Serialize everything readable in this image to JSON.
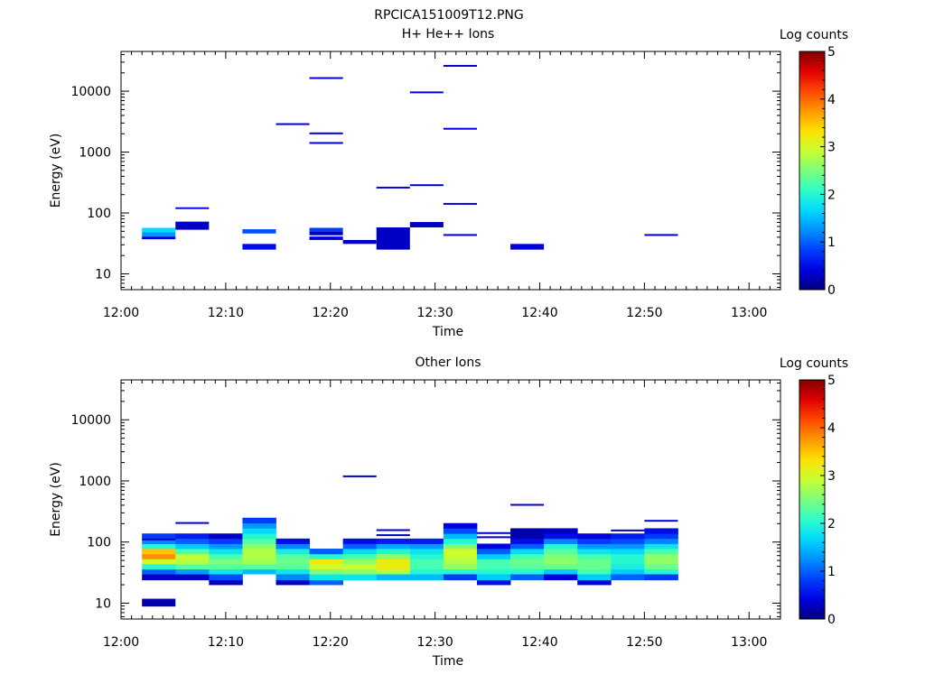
{
  "figure_title": "RPCICA151009T12.PNG",
  "colormap": [
    "#00007f",
    "#0000e0",
    "#0040ff",
    "#0090ff",
    "#00d8ff",
    "#30ffc8",
    "#7cff7a",
    "#c8ff30",
    "#ffe000",
    "#ff9800",
    "#ff4800",
    "#e00000",
    "#800000"
  ],
  "chart_data": [
    {
      "type": "heatmap",
      "title": "H+ He++ Ions",
      "xlabel": "Time",
      "ylabel": "Energy (eV)",
      "x_ticks": [
        "12:00",
        "12:10",
        "12:20",
        "12:30",
        "12:40",
        "12:50",
        "13:00"
      ],
      "x_range_minutes": [
        0,
        63
      ],
      "y_scale": "log",
      "y_range": [
        5.5,
        45000
      ],
      "y_ticks": [
        10,
        100,
        1000,
        10000
      ],
      "y_tick_labels": [
        "10",
        "100",
        "1000",
        "10000"
      ],
      "colorbar": {
        "label": "Log counts",
        "range": [
          0,
          5
        ],
        "ticks": [
          "0",
          "1",
          "2",
          "3",
          "4",
          "5"
        ]
      },
      "cells": [
        {
          "t0": 2.0,
          "t1": 5.2,
          "e0": 37,
          "e1": 41,
          "v": 0.4
        },
        {
          "t0": 2.0,
          "t1": 5.2,
          "e0": 41,
          "e1": 48,
          "v": 1.3
        },
        {
          "t0": 2.0,
          "t1": 5.2,
          "e0": 48,
          "e1": 57,
          "v": 1.7
        },
        {
          "t0": 5.2,
          "t1": 8.4,
          "e0": 53,
          "e1": 72,
          "v": 0.3
        },
        {
          "t0": 5.2,
          "t1": 8.4,
          "e0": 118,
          "e1": 124,
          "v": 0.5
        },
        {
          "t0": 11.6,
          "t1": 14.8,
          "e0": 25,
          "e1": 31,
          "v": 0.5
        },
        {
          "t0": 11.6,
          "t1": 14.8,
          "e0": 46,
          "e1": 54,
          "v": 0.9
        },
        {
          "t0": 14.8,
          "t1": 18.0,
          "e0": 2800,
          "e1": 2980,
          "v": 0.4
        },
        {
          "t0": 18.0,
          "t1": 21.2,
          "e0": 36,
          "e1": 41,
          "v": 0.4
        },
        {
          "t0": 18.0,
          "t1": 21.2,
          "e0": 43,
          "e1": 50,
          "v": 0.3
        },
        {
          "t0": 18.0,
          "t1": 21.2,
          "e0": 50,
          "e1": 57,
          "v": 0.8
        },
        {
          "t0": 18.0,
          "t1": 21.2,
          "e0": 1370,
          "e1": 1460,
          "v": 0.4
        },
        {
          "t0": 18.0,
          "t1": 21.2,
          "e0": 1980,
          "e1": 2100,
          "v": 0.4
        },
        {
          "t0": 18.0,
          "t1": 21.2,
          "e0": 16000,
          "e1": 17000,
          "v": 0.4
        },
        {
          "t0": 21.2,
          "t1": 24.4,
          "e0": 31,
          "e1": 36,
          "v": 0.3
        },
        {
          "t0": 24.4,
          "t1": 27.6,
          "e0": 25,
          "e1": 58,
          "v": 0.3
        },
        {
          "t0": 24.4,
          "t1": 27.6,
          "e0": 255,
          "e1": 270,
          "v": 0.4
        },
        {
          "t0": 27.6,
          "t1": 30.8,
          "e0": 58,
          "e1": 71,
          "v": 0.3
        },
        {
          "t0": 27.6,
          "t1": 30.8,
          "e0": 280,
          "e1": 296,
          "v": 0.4
        },
        {
          "t0": 27.6,
          "t1": 30.8,
          "e0": 9400,
          "e1": 9900,
          "v": 0.4
        },
        {
          "t0": 30.8,
          "t1": 34.0,
          "e0": 42,
          "e1": 45,
          "v": 0.4
        },
        {
          "t0": 30.8,
          "t1": 34.0,
          "e0": 138,
          "e1": 146,
          "v": 0.4
        },
        {
          "t0": 30.8,
          "t1": 34.0,
          "e0": 2380,
          "e1": 2500,
          "v": 0.4
        },
        {
          "t0": 30.8,
          "t1": 34.0,
          "e0": 25500,
          "e1": 27000,
          "v": 0.4
        },
        {
          "t0": 37.2,
          "t1": 40.4,
          "e0": 25,
          "e1": 31,
          "v": 0.4
        },
        {
          "t0": 50.0,
          "t1": 53.2,
          "e0": 42,
          "e1": 45,
          "v": 0.4
        }
      ]
    },
    {
      "type": "heatmap",
      "title": "Other Ions",
      "xlabel": "Time",
      "ylabel": "Energy (eV)",
      "x_ticks": [
        "12:00",
        "12:10",
        "12:20",
        "12:30",
        "12:40",
        "12:50",
        "13:00"
      ],
      "x_range_minutes": [
        0,
        63
      ],
      "y_scale": "log",
      "y_range": [
        5.5,
        45000
      ],
      "y_ticks": [
        10,
        100,
        1000,
        10000
      ],
      "y_tick_labels": [
        "10",
        "100",
        "1000",
        "10000"
      ],
      "colorbar": {
        "label": "Log counts",
        "range": [
          0,
          5
        ],
        "ticks": [
          "0",
          "1",
          "2",
          "3",
          "4",
          "5"
        ]
      },
      "energy_bins": [
        20,
        24,
        30,
        36,
        44,
        53,
        64,
        78,
        94,
        114,
        138,
        168,
        204,
        250
      ],
      "columns": [
        {
          "t0": 2.0,
          "t1": 5.2,
          "bin_start": 1,
          "values": [
            0.3,
            1.0,
            2.0,
            3.0,
            3.8,
            3.5,
            2.0,
            1.2,
            0.8
          ]
        },
        {
          "t0": 5.2,
          "t1": 8.4,
          "bin_start": 1,
          "values": [
            0.3,
            1.3,
            2.3,
            2.8,
            2.9,
            2.2,
            1.6,
            1.0,
            0.6
          ]
        },
        {
          "t0": 8.4,
          "t1": 11.6,
          "bin_start": 0,
          "values": [
            0.3,
            0.9,
            1.8,
            2.3,
            2.5,
            2.2,
            1.8,
            1.3,
            0.8,
            0.3
          ]
        },
        {
          "t0": 11.6,
          "t1": 14.8,
          "bin_start": 2,
          "values": [
            1.5,
            2.3,
            2.7,
            2.8,
            2.8,
            2.6,
            2.3,
            2.0,
            1.7,
            1.3,
            0.8
          ]
        },
        {
          "t0": 14.8,
          "t1": 18.0,
          "bin_start": 0,
          "values": [
            0.3,
            1.2,
            1.8,
            2.3,
            2.4,
            2.3,
            1.9,
            1.2,
            0.5
          ]
        },
        {
          "t0": 18.0,
          "t1": 21.2,
          "bin_start": 0,
          "values": [
            1.0,
            1.8,
            2.5,
            3.0,
            3.2,
            2.0,
            1.0
          ]
        },
        {
          "t0": 21.2,
          "t1": 24.4,
          "bin_start": 1,
          "values": [
            1.8,
            2.6,
            2.9,
            2.6,
            2.2,
            1.7,
            1.0,
            0.5
          ]
        },
        {
          "t0": 24.4,
          "t1": 27.6,
          "bin_start": 1,
          "values": [
            1.5,
            2.8,
            3.2,
            3.2,
            2.6,
            2.0,
            1.4,
            0.6
          ]
        },
        {
          "t0": 27.6,
          "t1": 30.8,
          "bin_start": 1,
          "values": [
            1.5,
            2.0,
            2.2,
            2.2,
            2.0,
            1.8,
            1.3,
            0.6
          ]
        },
        {
          "t0": 30.8,
          "t1": 34.0,
          "bin_start": 1,
          "values": [
            0.8,
            2.0,
            2.6,
            2.8,
            2.9,
            3.0,
            2.5,
            2.0,
            1.5,
            0.9,
            0.4
          ]
        },
        {
          "t0": 34.0,
          "t1": 37.2,
          "bin_start": 0,
          "values": [
            0.5,
            1.6,
            2.0,
            2.2,
            2.2,
            1.6,
            1.0,
            0.4
          ]
        },
        {
          "t0": 37.2,
          "t1": 40.4,
          "bin_start": 1,
          "values": [
            1.0,
            2.0,
            2.3,
            2.4,
            2.2,
            1.7,
            1.0,
            0.5,
            0.2,
            0.2
          ]
        },
        {
          "t0": 40.4,
          "t1": 43.6,
          "bin_start": 1,
          "values": [
            0.4,
            1.6,
            2.4,
            2.6,
            2.5,
            2.3,
            2.0,
            1.2,
            0.5,
            0.3
          ]
        },
        {
          "t0": 43.6,
          "t1": 46.8,
          "bin_start": 0,
          "values": [
            0.4,
            1.6,
            2.2,
            2.4,
            2.4,
            2.2,
            1.8,
            1.3,
            0.8,
            0.4
          ]
        },
        {
          "t0": 46.8,
          "t1": 50.0,
          "bin_start": 1,
          "values": [
            1.0,
            1.6,
            1.9,
            2.0,
            2.0,
            1.7,
            1.3,
            0.9,
            0.6
          ]
        },
        {
          "t0": 50.0,
          "t1": 53.2,
          "bin_start": 1,
          "values": [
            0.8,
            2.0,
            2.4,
            2.6,
            2.6,
            2.2,
            1.8,
            1.2,
            0.8,
            0.5
          ]
        }
      ],
      "cells": [
        {
          "t0": 2.0,
          "t1": 5.2,
          "e0": 8.8,
          "e1": 11.8,
          "v": 0.2
        },
        {
          "t0": 2.0,
          "t1": 5.2,
          "e0": 108,
          "e1": 114,
          "v": 0.3
        },
        {
          "t0": 5.2,
          "t1": 8.4,
          "e0": 200,
          "e1": 212,
          "v": 0.4
        },
        {
          "t0": 21.2,
          "t1": 24.4,
          "e0": 1150,
          "e1": 1230,
          "v": 0.3
        },
        {
          "t0": 24.4,
          "t1": 27.6,
          "e0": 128,
          "e1": 134,
          "v": 0.3
        },
        {
          "t0": 24.4,
          "t1": 27.6,
          "e0": 152,
          "e1": 162,
          "v": 0.3
        },
        {
          "t0": 34.0,
          "t1": 37.2,
          "e0": 118,
          "e1": 124,
          "v": 0.3
        },
        {
          "t0": 34.0,
          "t1": 37.2,
          "e0": 138,
          "e1": 145,
          "v": 0.3
        },
        {
          "t0": 37.2,
          "t1": 40.4,
          "e0": 395,
          "e1": 420,
          "v": 0.4
        },
        {
          "t0": 46.8,
          "t1": 50.0,
          "e0": 150,
          "e1": 160,
          "v": 0.3
        },
        {
          "t0": 50.0,
          "t1": 53.2,
          "e0": 218,
          "e1": 230,
          "v": 0.4
        }
      ]
    }
  ]
}
